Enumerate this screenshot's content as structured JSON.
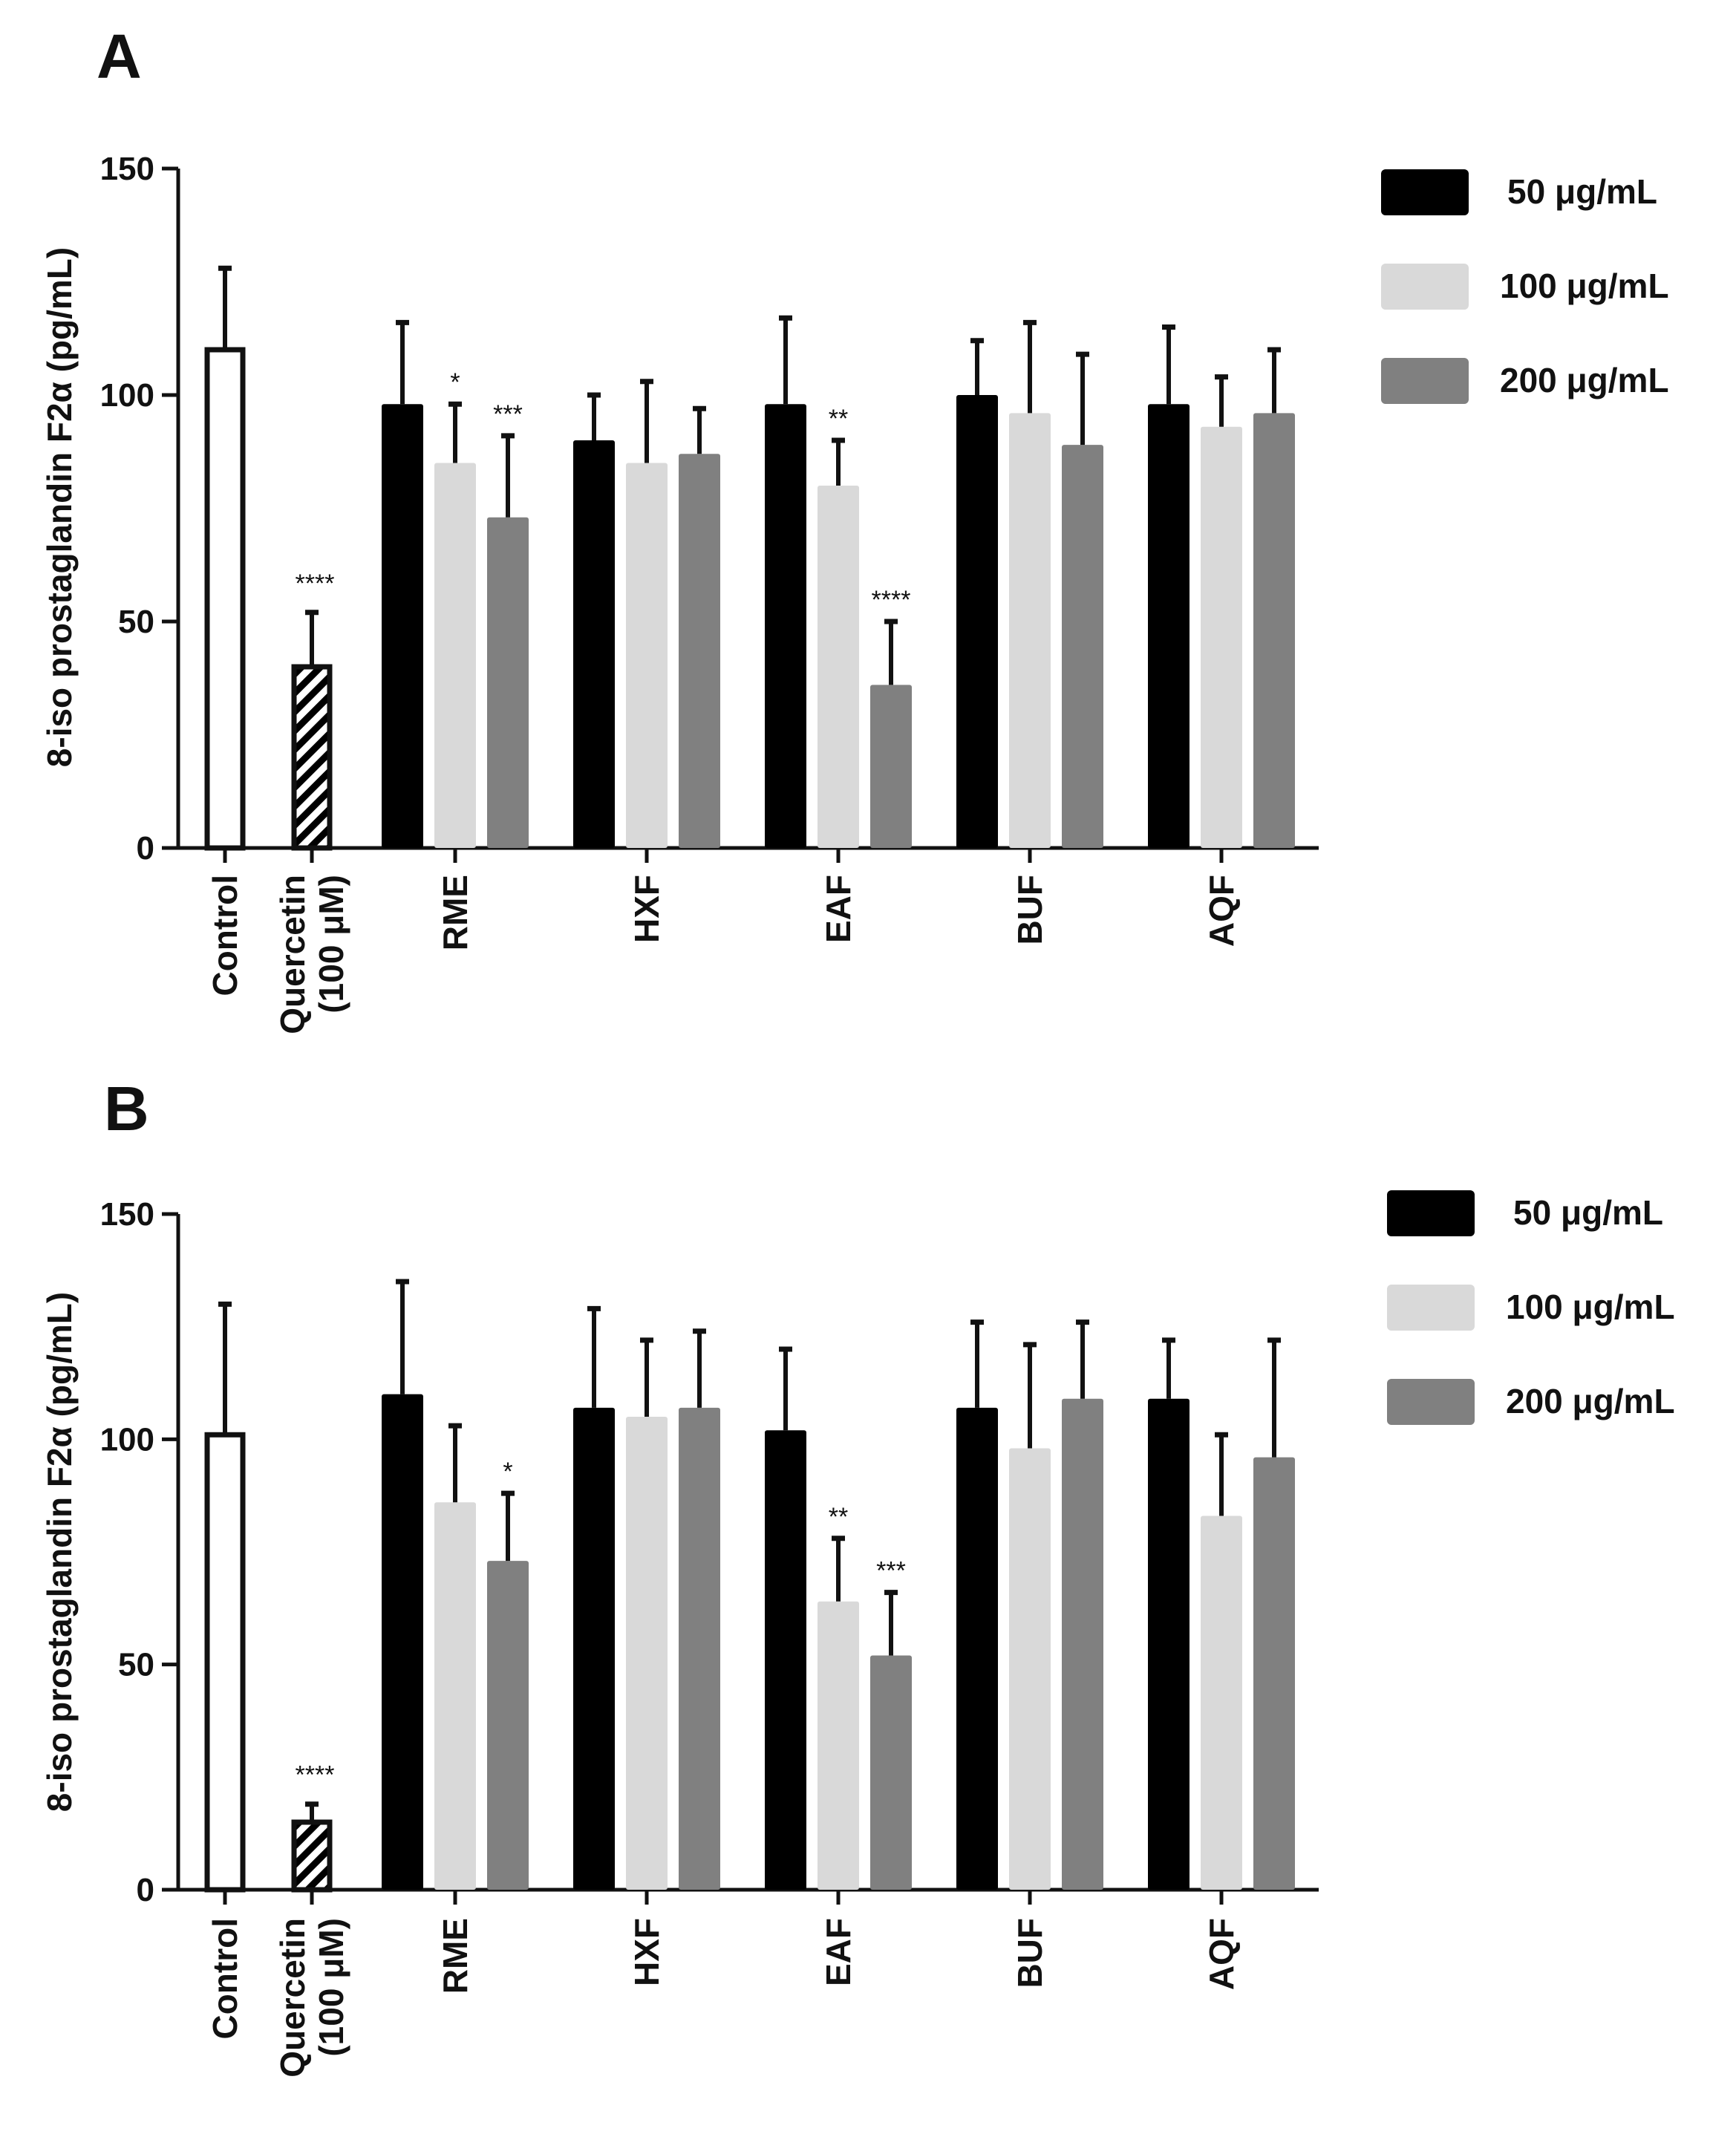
{
  "chart_data": [
    {
      "panel": "A",
      "type": "bar",
      "ylabel": "8-iso prostaglandin F2α (pg/mL)",
      "ylim": [
        0,
        150
      ],
      "yticks": [
        "0",
        "50",
        "100",
        "150"
      ],
      "controls": [
        {
          "label": "Control",
          "value": 110,
          "error": 18,
          "style": "white",
          "sig": ""
        },
        {
          "label": "Quercetin",
          "label2": "(100 μM)",
          "value": 40,
          "error": 12,
          "style": "hatched",
          "sig": "****"
        }
      ],
      "groups": [
        "RME",
        "HXF",
        "EAF",
        "BUF",
        "AQF"
      ],
      "series": [
        {
          "name": "50 μg/mL",
          "color": "#000000",
          "values": [
            98,
            90,
            98,
            100,
            98
          ],
          "errors": [
            18,
            10,
            19,
            12,
            17
          ],
          "sig": [
            "",
            "",
            "",
            "",
            ""
          ]
        },
        {
          "name": "100 μg/mL",
          "color": "#d9d9d9",
          "values": [
            85,
            85,
            80,
            96,
            93
          ],
          "errors": [
            13,
            18,
            10,
            20,
            11
          ],
          "sig": [
            "*",
            "",
            "**",
            "",
            ""
          ]
        },
        {
          "name": "200 μg/mL",
          "color": "#808080",
          "values": [
            73,
            87,
            36,
            89,
            96
          ],
          "errors": [
            18,
            10,
            14,
            20,
            14
          ],
          "sig": [
            "***",
            "",
            "****",
            "",
            ""
          ]
        }
      ],
      "legend_position": "top-right"
    },
    {
      "panel": "B",
      "type": "bar",
      "ylabel": "8-iso prostaglandin F2α (pg/mL)",
      "ylim": [
        0,
        150
      ],
      "yticks": [
        "0",
        "50",
        "100",
        "150"
      ],
      "controls": [
        {
          "label": "Control",
          "value": 101,
          "error": 29,
          "style": "white",
          "sig": ""
        },
        {
          "label": "Quercetin",
          "label2": "(100 μM)",
          "value": 15,
          "error": 4,
          "style": "hatched",
          "sig": "****"
        }
      ],
      "groups": [
        "RME",
        "HXF",
        "EAF",
        "BUF",
        "AQF"
      ],
      "series": [
        {
          "name": "50 μg/mL",
          "color": "#000000",
          "values": [
            110,
            107,
            102,
            107,
            109
          ],
          "errors": [
            25,
            22,
            18,
            19,
            13
          ],
          "sig": [
            "",
            "",
            "",
            "",
            ""
          ]
        },
        {
          "name": "100 μg/mL",
          "color": "#d9d9d9",
          "values": [
            86,
            105,
            64,
            98,
            83
          ],
          "errors": [
            17,
            17,
            14,
            23,
            18
          ],
          "sig": [
            "",
            "",
            "**",
            "",
            ""
          ]
        },
        {
          "name": "200 μg/mL",
          "color": "#808080",
          "values": [
            73,
            107,
            52,
            109,
            96
          ],
          "errors": [
            15,
            17,
            14,
            17,
            26
          ],
          "sig": [
            "*",
            "",
            "***",
            "",
            ""
          ]
        }
      ],
      "legend_position": "top-right"
    }
  ]
}
